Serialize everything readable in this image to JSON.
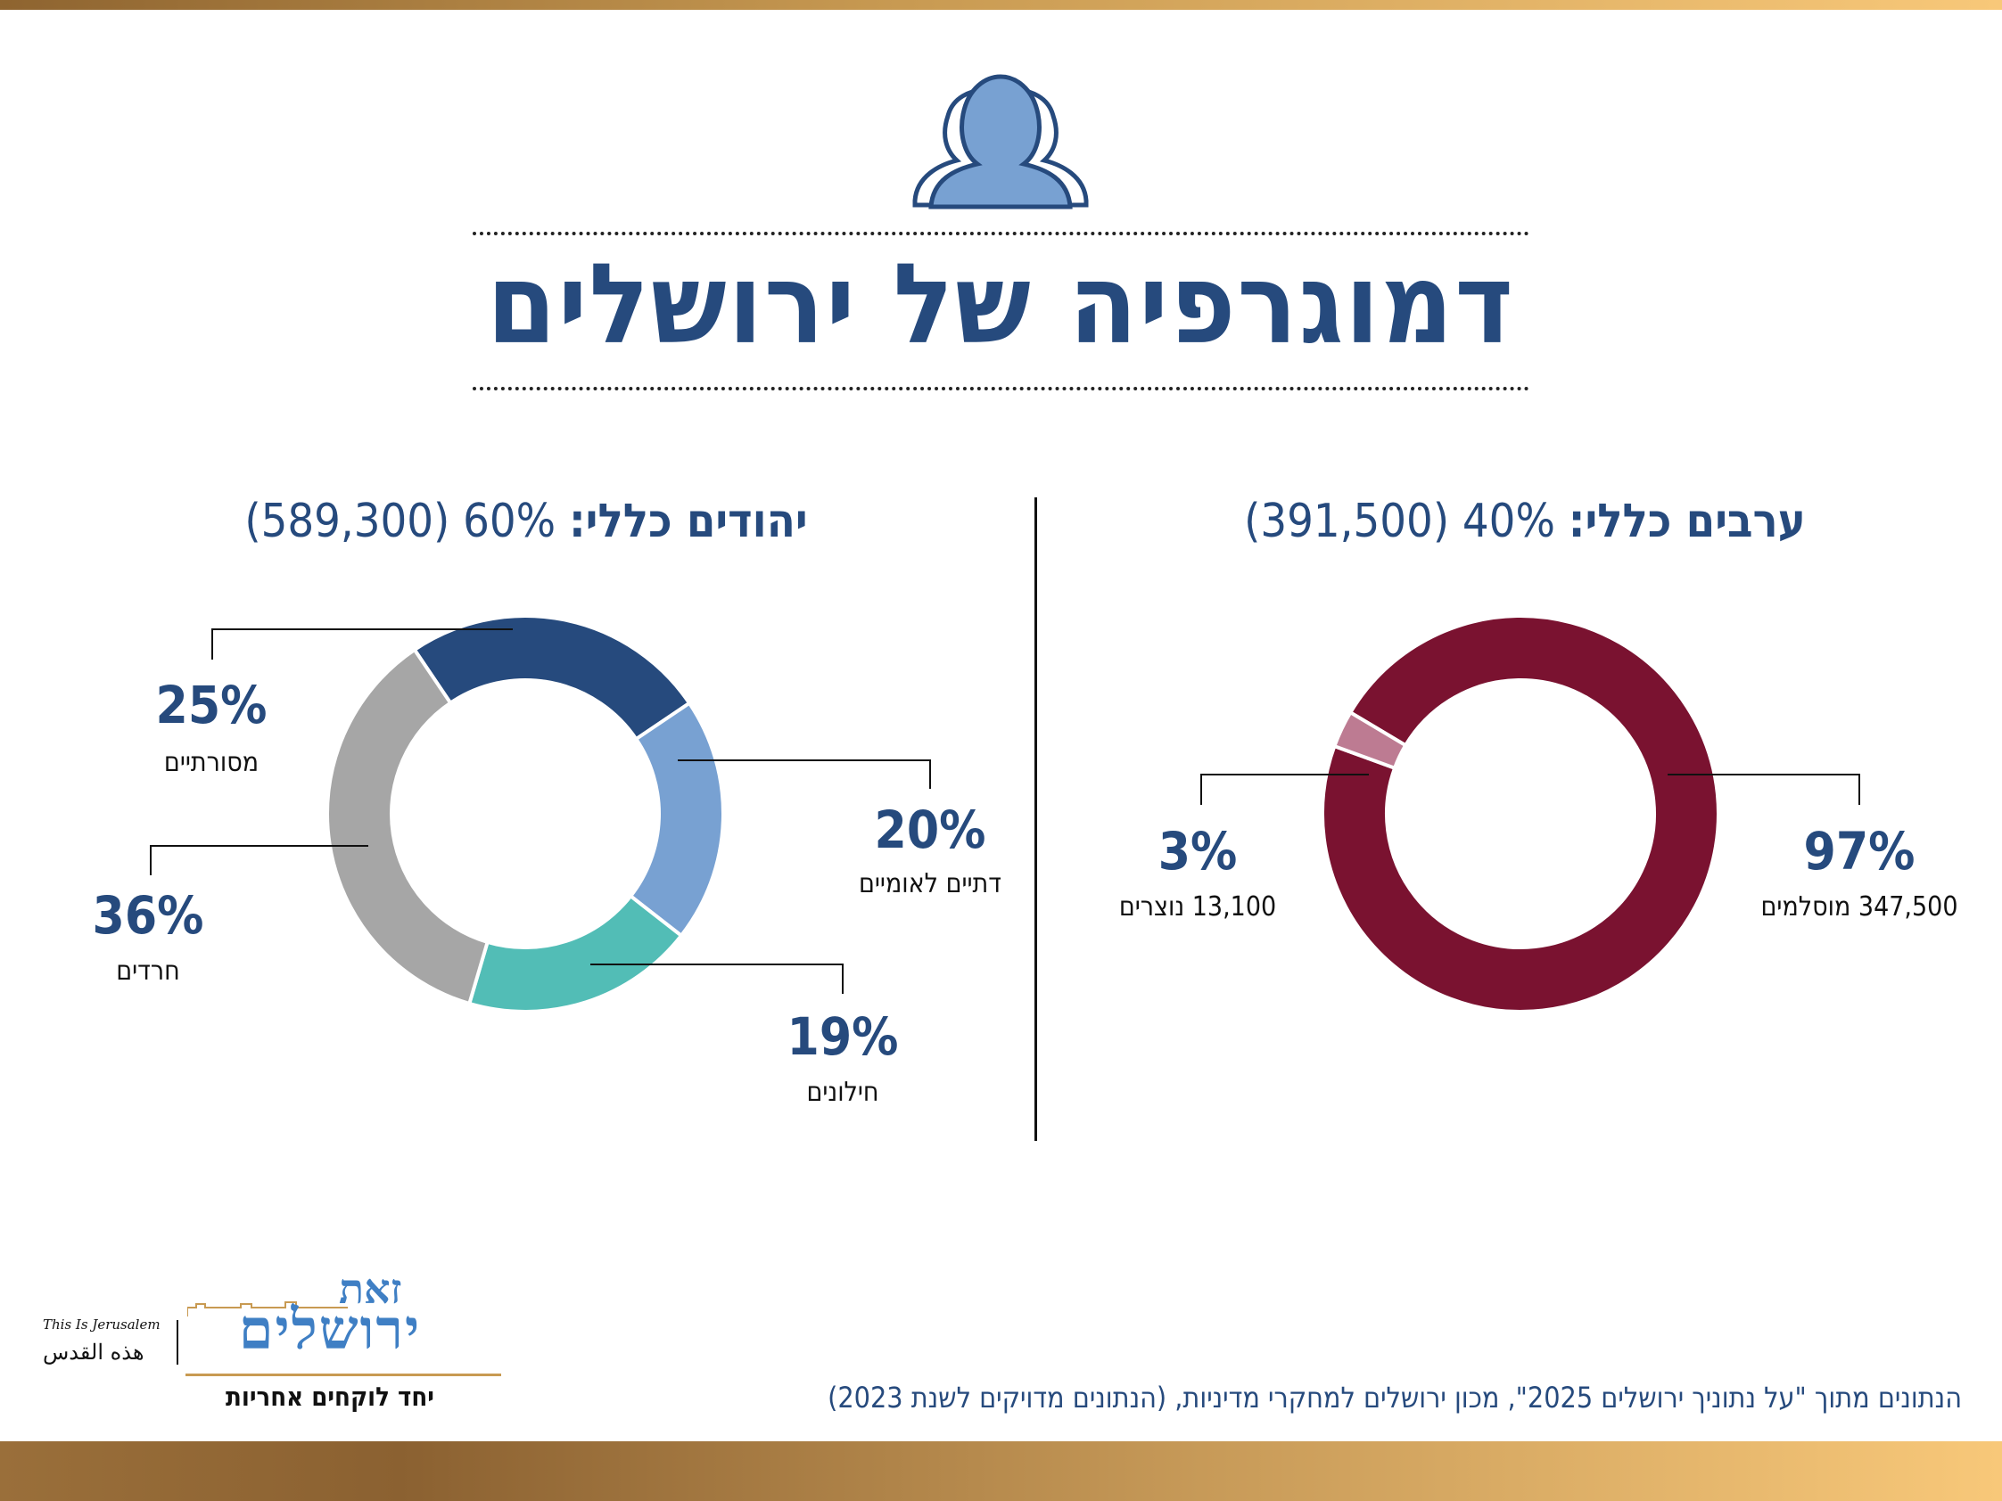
{
  "title": "דמוגרפיה של ירושלים",
  "colors": {
    "accent_blue": "#264a7d",
    "gold": "#c89a52",
    "masoratiim": "#264a7d",
    "datiim_leumiim": "#78a1d2",
    "hilonim": "#52bdb6",
    "haredim": "#a6a6a6",
    "muslims": "#7a1230",
    "christians": "#bd7b92"
  },
  "sections": {
    "jews": {
      "lead": "יהודים כללי:",
      "rest": " 60% (589,300)"
    },
    "arabs": {
      "lead": "ערבים כללי:",
      "rest": " 40% (391,500)"
    }
  },
  "chart_data": [
    {
      "type": "pie",
      "title": "יהודים כללי: 60% (589,300)",
      "categories": [
        "מסורתיים",
        "דתיים לאומיים",
        "חילונים",
        "חרדים"
      ],
      "values": [
        25,
        20,
        19,
        36
      ],
      "value_labels": [
        "25%",
        "20%",
        "19%",
        "36%"
      ],
      "colors": [
        "#264a7d",
        "#78a1d2",
        "#52bdb6",
        "#a6a6a6"
      ],
      "style": "donut"
    },
    {
      "type": "pie",
      "title": "ערבים כללי: 40% (391,500)",
      "categories": [
        "347,500 מוסלמים",
        "13,100 נוצרים"
      ],
      "values": [
        97,
        3
      ],
      "value_labels": [
        "97%",
        "3%"
      ],
      "colors": [
        "#7a1230",
        "#bd7b92"
      ],
      "style": "donut"
    }
  ],
  "source": "הנתונים מתוך \"על נתוניך ירושלים 2025\", מכון ירושלים למחקרי מדיניות, (הנתונים מדויקים לשנת 2023)",
  "logo": {
    "heb_line1": "זאת",
    "heb_line2": "ירושלים",
    "english": "This Is Jerusalem",
    "arabic": "هذه القدس",
    "tagline": "יחד לוקחים אחריות"
  }
}
